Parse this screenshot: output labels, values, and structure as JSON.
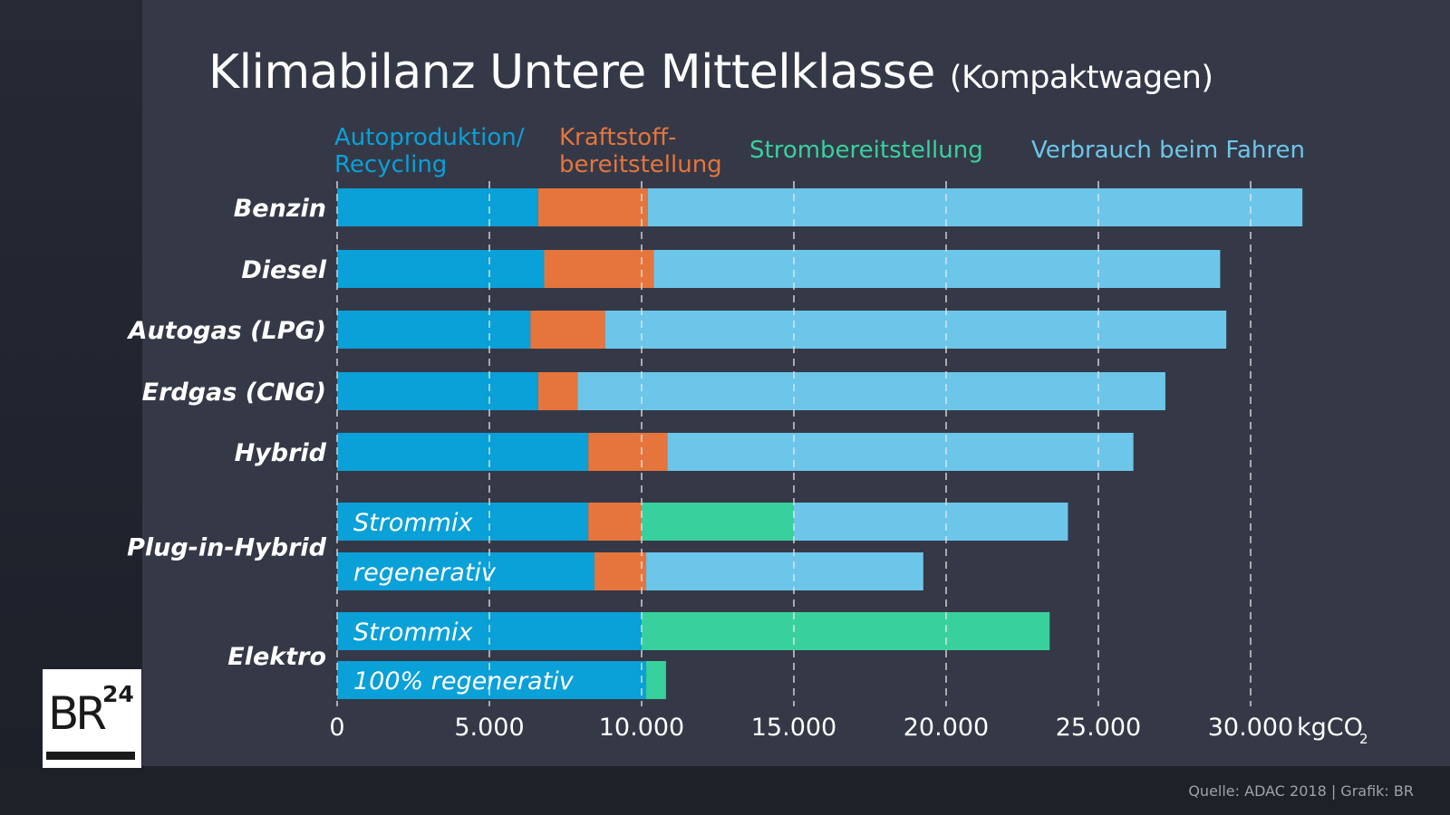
{
  "title": "Klimabilanz Untere Mittelklasse",
  "subtitle": "(Kompaktwagen)",
  "source": "Quelle: ADAC 2018 | Grafik: BR",
  "logo_text": "BR24",
  "colors": {
    "background": "#353947",
    "autoproduktion": "#0aa0d8",
    "kraftstoff": "#e5753d",
    "strom": "#38d19d",
    "verbrauch": "#6cc6ea"
  },
  "chart_data": {
    "type": "bar",
    "orientation": "horizontal",
    "stacked": true,
    "unit_label": "kgCO",
    "unit_subscript": "2",
    "xlim": [
      0,
      33000
    ],
    "xticks": [
      0,
      5000,
      10000,
      15000,
      20000,
      25000,
      30000
    ],
    "xtick_labels": [
      "0",
      "5.000",
      "10.000",
      "15.000",
      "20.000",
      "25.000",
      "30.000"
    ],
    "grid": "vertical dashed",
    "legend_position": "top",
    "legend": [
      {
        "key": "autoproduktion",
        "lines": [
          "Autoproduktion/",
          "Recycling"
        ]
      },
      {
        "key": "kraftstoff",
        "lines": [
          "Kraftstoff-",
          "bereitstellung"
        ]
      },
      {
        "key": "strom",
        "lines": [
          "Strombereitstellung"
        ]
      },
      {
        "key": "verbrauch",
        "lines": [
          "Verbrauch beim Fahren"
        ]
      }
    ],
    "rows": [
      {
        "category": "Benzin",
        "sub_label": "",
        "segments": {
          "autoproduktion": 6600,
          "kraftstoff": 3600,
          "strom": 0,
          "verbrauch": 21500
        }
      },
      {
        "category": "Diesel",
        "sub_label": "",
        "segments": {
          "autoproduktion": 6800,
          "kraftstoff": 3600,
          "strom": 0,
          "verbrauch": 18600
        }
      },
      {
        "category": "Autogas (LPG)",
        "sub_label": "",
        "segments": {
          "autoproduktion": 6350,
          "kraftstoff": 2450,
          "strom": 0,
          "verbrauch": 20400
        }
      },
      {
        "category": "Erdgas (CNG)",
        "sub_label": "",
        "segments": {
          "autoproduktion": 6600,
          "kraftstoff": 1300,
          "strom": 0,
          "verbrauch": 19300
        }
      },
      {
        "category": "Hybrid",
        "sub_label": "",
        "segments": {
          "autoproduktion": 8250,
          "kraftstoff": 2600,
          "strom": 0,
          "verbrauch": 15300
        }
      },
      {
        "category": "Plug-in-Hybrid",
        "sub_label": "Strommix",
        "segments": {
          "autoproduktion": 8250,
          "kraftstoff": 1750,
          "strom": 5000,
          "verbrauch": 9000
        }
      },
      {
        "category": "Plug-in-Hybrid",
        "sub_label": "regenerativ",
        "segments": {
          "autoproduktion": 8450,
          "kraftstoff": 1700,
          "strom": 0,
          "verbrauch": 9100
        }
      },
      {
        "category": "Elektro",
        "sub_label": "Strommix",
        "segments": {
          "autoproduktion": 10000,
          "kraftstoff": 0,
          "strom": 13400,
          "verbrauch": 0
        }
      },
      {
        "category": "Elektro",
        "sub_label": "100% regenerativ",
        "segments": {
          "autoproduktion": 10150,
          "kraftstoff": 0,
          "strom": 650,
          "verbrauch": 0
        }
      }
    ]
  }
}
